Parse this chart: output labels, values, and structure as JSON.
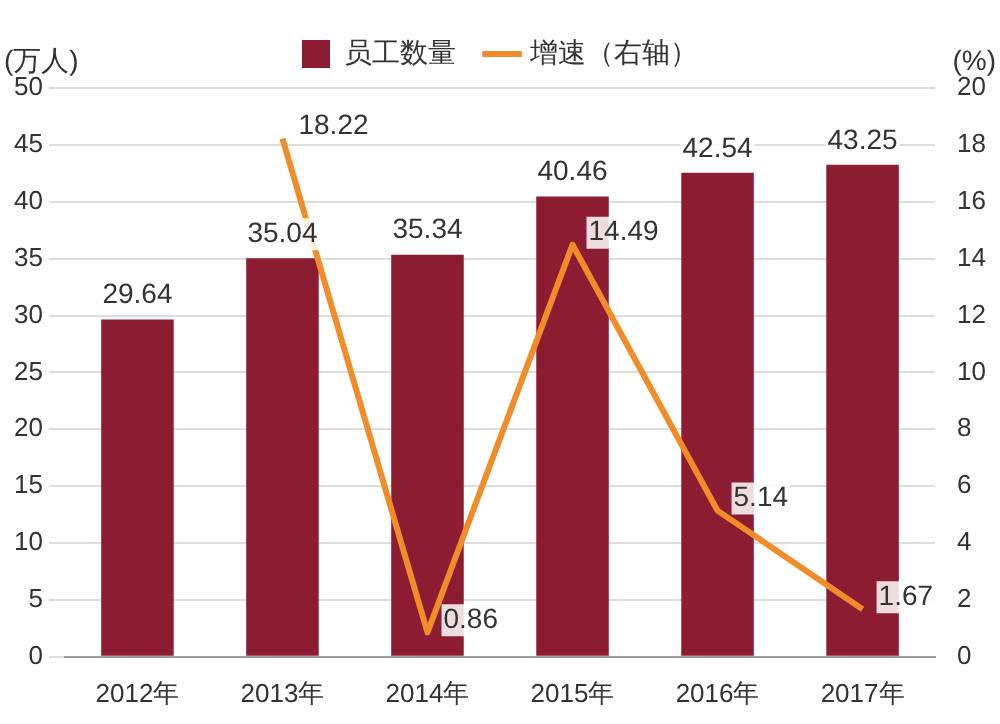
{
  "chart_data": {
    "type": "bar",
    "ylabel": "(万人)",
    "y2label": "(%)",
    "categories": [
      "2012年",
      "2013年",
      "2014年",
      "2015年",
      "2016年",
      "2017年"
    ],
    "series": [
      {
        "name": "员工数量",
        "color": "#8b1c31",
        "values": [
          29.64,
          35.04,
          35.34,
          40.46,
          42.54,
          43.25
        ]
      },
      {
        "name": "增速（右轴）",
        "type": "line",
        "axis": "y2",
        "color": "#f28c28",
        "values": [
          null,
          18.22,
          0.86,
          14.49,
          5.14,
          1.67
        ]
      }
    ],
    "ylim": [
      0,
      50
    ],
    "yticks": [
      0,
      5,
      10,
      15,
      20,
      25,
      30,
      35,
      40,
      45,
      50
    ],
    "y2lim": [
      0,
      20
    ],
    "y2ticks": [
      0,
      2,
      4,
      6,
      8,
      10,
      12,
      14,
      16,
      18,
      20
    ],
    "grid": "y",
    "legend": "top",
    "data_labels": true,
    "marker": "none"
  }
}
